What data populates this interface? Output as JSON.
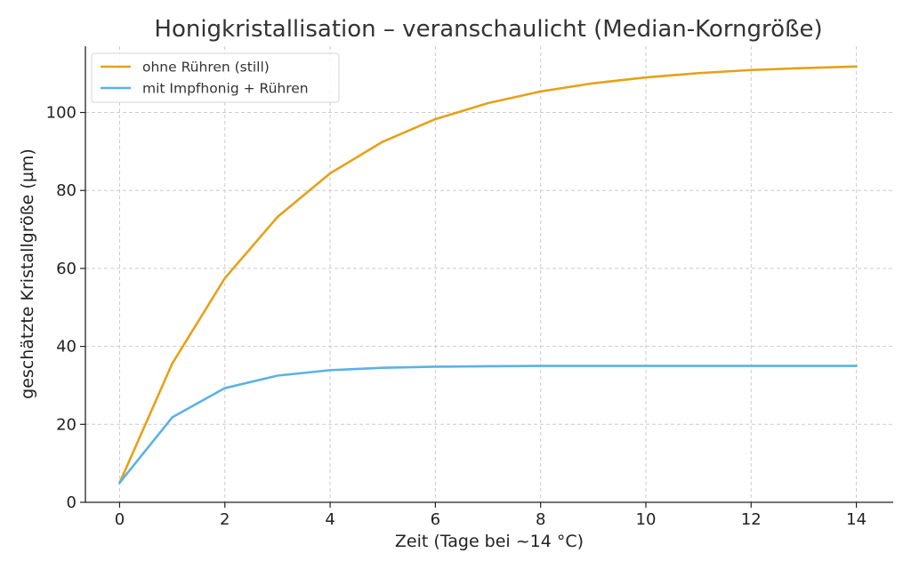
{
  "chart_data": {
    "type": "line",
    "title": "Honigkristallisation – veranschaulicht (Median-Korngröße)",
    "xlabel": "Zeit (Tage bei ~14 °C)",
    "ylabel": "geschätzte Kristallgröße (µm)",
    "xlim": [
      -0.65,
      14.7
    ],
    "ylim": [
      0,
      117
    ],
    "xticks": [
      0,
      2,
      4,
      6,
      8,
      10,
      12,
      14
    ],
    "yticks": [
      0,
      20,
      40,
      60,
      80,
      100
    ],
    "grid": true,
    "legend_position": "top-left",
    "x": [
      0,
      1,
      2,
      3,
      4,
      5,
      6,
      7,
      8,
      9,
      10,
      11,
      12,
      13,
      14
    ],
    "series": [
      {
        "name": "ohne Rühren (still)",
        "color": "#E6A117",
        "values": [
          5,
          35.6,
          57.5,
          73.2,
          84.4,
          92.5,
          98.3,
          102.4,
          105.4,
          107.5,
          109,
          110.1,
          110.9,
          111.4,
          111.8
        ]
      },
      {
        "name": "mit Impfhonig + Rühren",
        "color": "#5BB2E6",
        "values": [
          5,
          21.8,
          29.3,
          32.5,
          33.9,
          34.5,
          34.8,
          34.9,
          35,
          35,
          35,
          35,
          35,
          35,
          35
        ]
      }
    ]
  }
}
